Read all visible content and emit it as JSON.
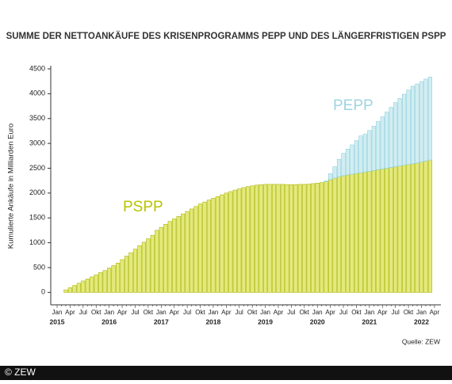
{
  "chart_data": {
    "type": "bar",
    "stacked": true,
    "title": "SUMME DER NETTOANKÄUFE DES KRISENPROGRAMMS PEPP UND DES LÄNGERFRISTIGEN PSPP",
    "y_label": "Kumulierte Ankäufe in Milliarden Euro",
    "source": "Quelle: ZEW",
    "categories": [
      "Jan",
      null,
      null,
      "Apr",
      null,
      null,
      "Jul",
      null,
      null,
      "Okt",
      null,
      null,
      "Jan",
      null,
      null,
      "Apr",
      null,
      null,
      "Jul",
      null,
      null,
      "Okt",
      null,
      null,
      "Jan",
      null,
      null,
      "Apr",
      null,
      null,
      "Jul",
      null,
      null,
      "Okt",
      null,
      null,
      "Jan",
      null,
      null,
      "Apr",
      null,
      null,
      "Jul",
      null,
      null,
      "Okt",
      null,
      null,
      "Jan",
      null,
      null,
      "Apr",
      null,
      null,
      "Jul",
      null,
      null,
      "Okt",
      null,
      null,
      "Jan",
      null,
      null,
      "Apr",
      null,
      null,
      "Jul",
      null,
      null,
      "Okt",
      null,
      null,
      "Jan",
      null,
      null,
      "Apr",
      null,
      null,
      "Jul",
      null,
      null,
      "Okt",
      null,
      null,
      "Jan",
      null,
      null,
      "Apr"
    ],
    "years": [
      "2015",
      "2016",
      "2017",
      "2018",
      "2019",
      "2020",
      "2021",
      "2022"
    ],
    "series": [
      {
        "name": "PSPP",
        "color": "#e4e97c",
        "stroke": "#a9b600",
        "label_color": "#b9c400",
        "values": [
          null,
          null,
          50,
          95,
          140,
          185,
          230,
          270,
          310,
          355,
          400,
          440,
          490,
          540,
          590,
          660,
          730,
          800,
          870,
          940,
          1010,
          1080,
          1150,
          1250,
          1310,
          1370,
          1430,
          1480,
          1530,
          1580,
          1630,
          1680,
          1730,
          1780,
          1820,
          1860,
          1895,
          1930,
          1965,
          2000,
          2030,
          2060,
          2085,
          2110,
          2130,
          2145,
          2160,
          2170,
          2175,
          2175,
          2175,
          2175,
          2175,
          2170,
          2170,
          2170,
          2175,
          2175,
          2180,
          2190,
          2200,
          2210,
          2230,
          2270,
          2300,
          2330,
          2350,
          2365,
          2380,
          2395,
          2410,
          2425,
          2440,
          2455,
          2470,
          2485,
          2500,
          2515,
          2530,
          2545,
          2560,
          2575,
          2590,
          2605,
          2625,
          2645,
          2665,
          null
        ]
      },
      {
        "name": "PEPP",
        "color": "#d2edf2",
        "stroke": "#8ccfdc",
        "label_color": "#9fd4e0",
        "values": [
          null,
          null,
          null,
          null,
          null,
          null,
          null,
          null,
          null,
          null,
          null,
          null,
          null,
          null,
          null,
          null,
          null,
          null,
          null,
          null,
          null,
          null,
          null,
          null,
          null,
          null,
          null,
          null,
          null,
          null,
          null,
          null,
          null,
          null,
          null,
          null,
          null,
          null,
          null,
          null,
          null,
          null,
          null,
          null,
          null,
          null,
          null,
          null,
          null,
          null,
          null,
          null,
          null,
          null,
          null,
          null,
          null,
          null,
          null,
          null,
          null,
          null,
          15,
          120,
          230,
          350,
          450,
          520,
          590,
          660,
          740,
          760,
          820,
          890,
          970,
          1050,
          1130,
          1210,
          1290,
          1360,
          1430,
          1500,
          1560,
          1590,
          1620,
          1650,
          1670,
          null
        ]
      }
    ],
    "ylim": [
      -250,
      4500
    ],
    "yticks": [
      0,
      500,
      1000,
      1500,
      2000,
      2500,
      3000,
      3500,
      4000,
      4500
    ]
  },
  "footer": "© ZEW"
}
